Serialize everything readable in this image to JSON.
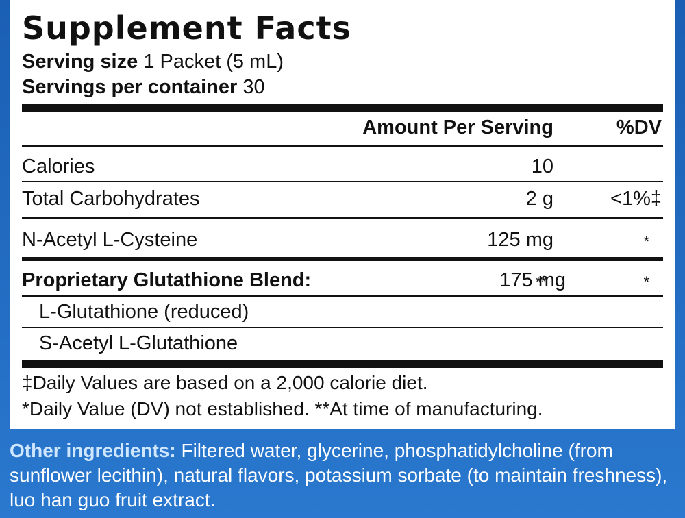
{
  "label": {
    "title": "Supplement Facts",
    "serving_size": {
      "label": "Serving size",
      "value": "1 Packet (5 mL)"
    },
    "servings_per_container": {
      "label": "Servings per container",
      "value": "30"
    },
    "header": {
      "amount": "Amount Per Serving",
      "dv": "%DV"
    },
    "rows": [
      {
        "name": "Calories",
        "amount": "10"
      },
      {
        "name": "Total Carbohydrates",
        "amount": "2 g",
        "dv": "<1%‡"
      },
      {
        "name": "N-Acetyl L-Cysteine",
        "amount": "125 mg",
        "dv": "*"
      },
      {
        "name": "Proprietary Glutathione Blend:",
        "amount": "175 mg",
        "amount_note": "**",
        "dv": "*"
      },
      {
        "name": "L-Glutathione (reduced)"
      },
      {
        "name": "S-Acetyl L-Glutathione"
      }
    ],
    "footnotes": [
      "‡Daily Values are based on a 2,000 calorie diet.",
      "*Daily Value (DV) not established. **At time of manufacturing."
    ]
  },
  "other_ingredients": {
    "label": "Other ingredients:",
    "text": "Filtered water, glycerine, phosphatidylcholine (from sunflower lecithin), natural flavors, potassium sorbate (to maintain freshness), luo han guo fruit extract."
  }
}
